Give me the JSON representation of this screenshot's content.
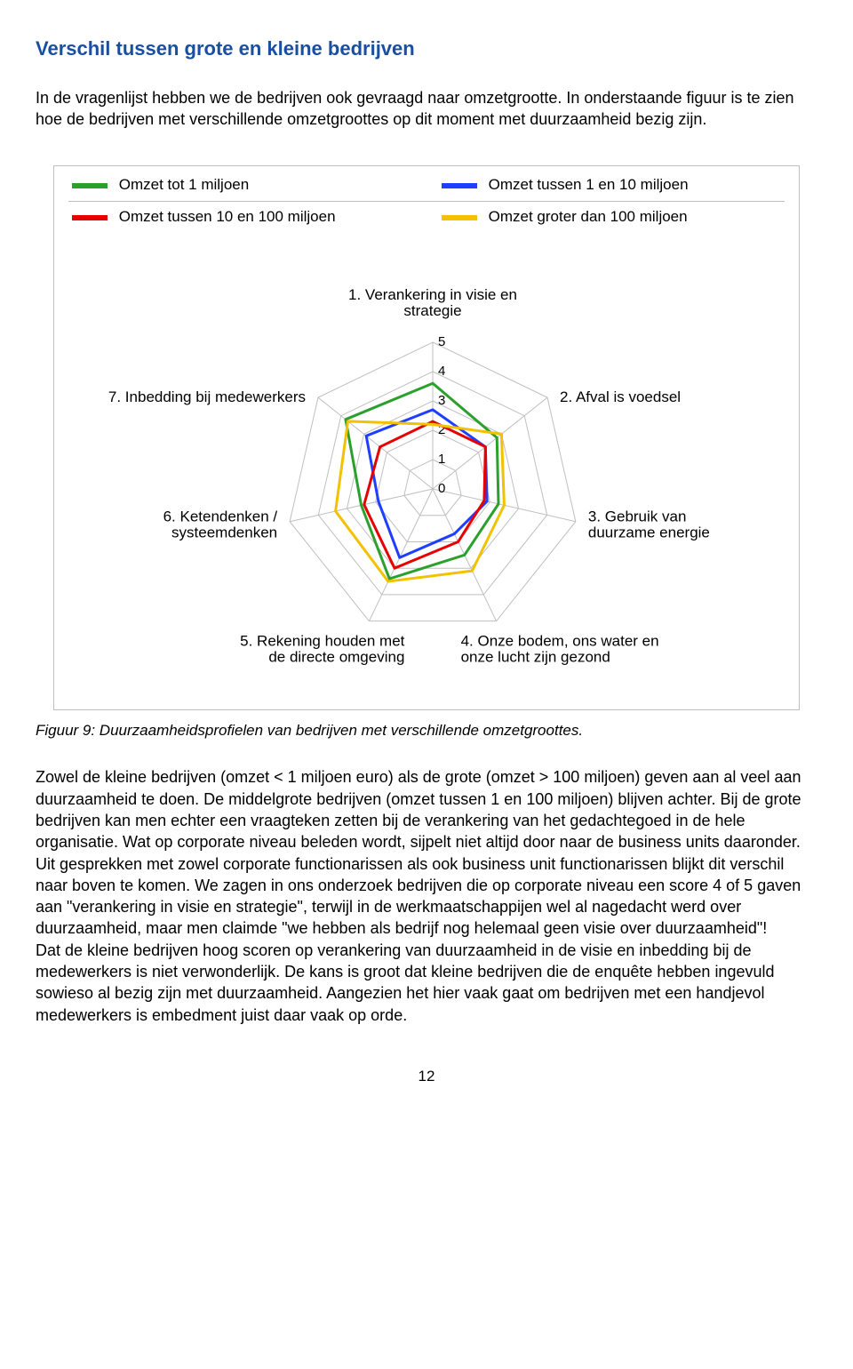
{
  "heading": "Verschil tussen grote en kleine bedrijven",
  "intro": "In de vragenlijst hebben we de bedrijven ook gevraagd naar omzetgrootte. In onderstaande figuur is te zien hoe de bedrijven met verschillende omzetgroottes op dit moment met duurzaamheid bezig zijn.",
  "chart": {
    "type": "radar",
    "grid_color": "#bfbfbf",
    "background_color": "#ffffff",
    "line_width": 3,
    "label_fontsize": 17,
    "tick_fontsize": 15,
    "rmax": 5,
    "rticks": [
      0,
      1,
      2,
      3,
      4,
      5
    ],
    "legend": [
      {
        "label": "Omzet tot 1 miljoen",
        "color": "#2ca02c"
      },
      {
        "label": "Omzet tussen 1 en 10 miljoen",
        "color": "#1f3fff"
      },
      {
        "label": "Omzet tussen 10 en 100 miljoen",
        "color": "#e60000"
      },
      {
        "label": "Omzet groter dan 100 miljoen",
        "color": "#f2c200"
      }
    ],
    "axes": [
      "1. Verankering in visie en strategie",
      "2. Afval is voedsel",
      "3. Gebruik van duurzame energie",
      "4. Onze bodem, ons water en onze lucht zijn gezond",
      "5. Rekening houden met de directe omgeving",
      "6. Ketendenken / systeemdenken",
      "7. Inbedding bij medewerkers"
    ],
    "series": [
      {
        "color": "#2ca02c",
        "values": [
          3.6,
          2.8,
          2.3,
          2.5,
          3.4,
          2.5,
          3.8
        ]
      },
      {
        "color": "#1f3fff",
        "values": [
          2.7,
          2.3,
          1.9,
          1.7,
          2.6,
          1.9,
          2.9
        ]
      },
      {
        "color": "#e60000",
        "values": [
          2.3,
          2.3,
          1.8,
          2.0,
          3.0,
          2.4,
          2.3
        ]
      },
      {
        "color": "#f2c200",
        "values": [
          2.2,
          3.0,
          2.5,
          3.1,
          3.5,
          3.4,
          3.7
        ]
      }
    ]
  },
  "caption": "Figuur 9: Duurzaamheidsprofielen van bedrijven met verschillende omzetgroottes.",
  "body": "Zowel de kleine bedrijven (omzet < 1 miljoen euro) als de grote (omzet > 100 miljoen) geven aan al veel aan duurzaamheid te doen. De middelgrote bedrijven (omzet tussen 1 en 100 miljoen) blijven achter. Bij de grote bedrijven kan men echter een vraagteken zetten bij de verankering van het gedachtegoed in de hele organisatie. Wat op corporate niveau beleden wordt, sijpelt niet altijd door naar de business units daaronder. Uit gesprekken met zowel corporate functionarissen als ook business unit functionarissen blijkt dit verschil naar boven te komen. We zagen in ons onderzoek bedrijven die op corporate niveau een score 4 of 5 gaven aan \"verankering in visie en strategie\", terwijl in de werkmaatschappijen wel al nagedacht werd over duurzaamheid, maar men claimde \"we hebben als bedrijf nog helemaal geen visie over duurzaamheid\"!\nDat de kleine bedrijven hoog scoren op verankering van duurzaamheid in de visie en inbedding bij de medewerkers is niet verwonderlijk. De kans is groot dat kleine bedrijven die de enquête hebben ingevuld sowieso al bezig zijn met duurzaamheid. Aangezien het hier vaak gaat om bedrijven met een handjevol medewerkers is embedment juist daar vaak op orde.",
  "page_number": "12"
}
